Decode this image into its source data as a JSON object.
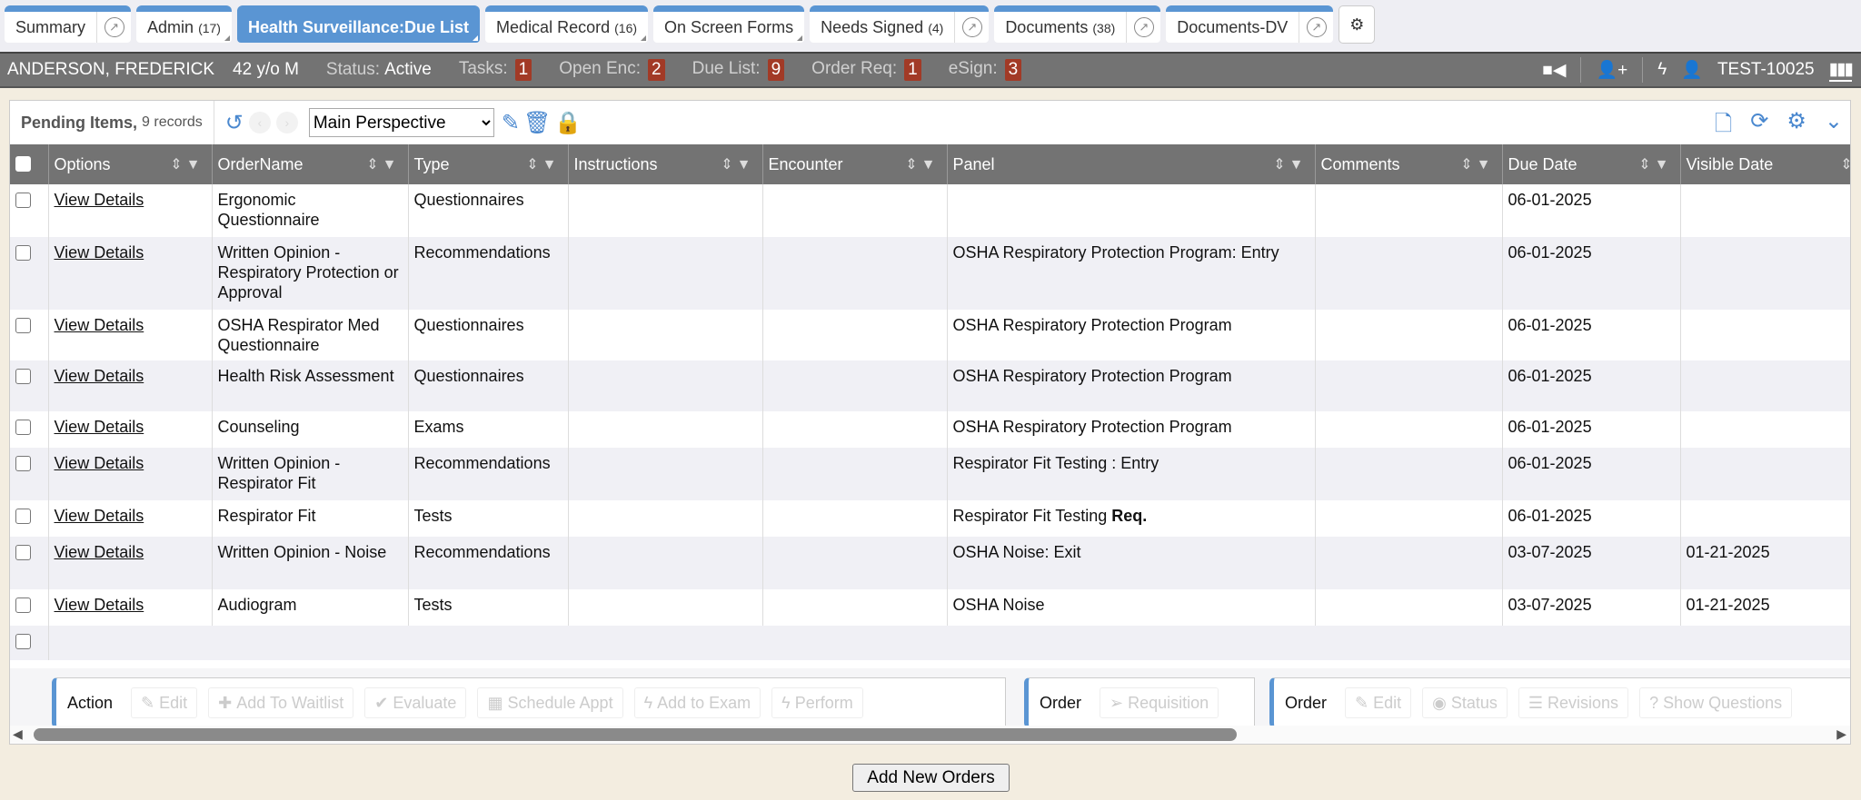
{
  "tabs": [
    {
      "label": "Summary",
      "count": "",
      "ext": true,
      "active": false
    },
    {
      "label": "Admin",
      "count": "(17)",
      "ext": false,
      "active": false
    },
    {
      "label": "Health Surveillance:Due List",
      "count": "",
      "ext": false,
      "active": true
    },
    {
      "label": "Medical Record",
      "count": "(16)",
      "ext": false,
      "active": false
    },
    {
      "label": "On Screen Forms",
      "count": "",
      "ext": false,
      "active": false
    },
    {
      "label": "Needs Signed",
      "count": "(4)",
      "ext": true,
      "active": false
    },
    {
      "label": "Documents",
      "count": "(38)",
      "ext": true,
      "active": false
    },
    {
      "label": "Documents-DV",
      "count": "",
      "ext": true,
      "active": false
    }
  ],
  "patient": {
    "name": "ANDERSON, FREDERICK",
    "age": "42 y/o M",
    "status_label": "Status:",
    "status": "Active",
    "counters": [
      {
        "label": "Tasks:",
        "value": "1"
      },
      {
        "label": "Open Enc:",
        "value": "2"
      },
      {
        "label": "Due List:",
        "value": "9"
      },
      {
        "label": "Order Req:",
        "value": "1"
      },
      {
        "label": "eSign:",
        "value": "3"
      }
    ],
    "user": "TEST-10025"
  },
  "toolbar": {
    "title": "Pending Items,",
    "records": "9 records",
    "perspective": "Main Perspective"
  },
  "columns": [
    "Options",
    "OrderName",
    "Type",
    "Instructions",
    "Encounter",
    "Panel",
    "Comments",
    "Due Date",
    "Visible Date"
  ],
  "rows": [
    {
      "option": "View Details",
      "order": "Ergonomic Questionnaire",
      "type": "Questionnaires",
      "panel": "",
      "req": "",
      "due": "06-01-2025",
      "visible": ""
    },
    {
      "option": "View Details",
      "order": "Written Opinion - Respiratory Protection or Approval",
      "type": "Recommendations",
      "panel": "OSHA Respiratory Protection Program: Entry",
      "req": "",
      "due": "06-01-2025",
      "visible": ""
    },
    {
      "option": "View Details",
      "order": "OSHA Respirator Med Questionnaire",
      "type": "Questionnaires",
      "panel": "OSHA Respiratory Protection Program",
      "req": "",
      "due": "06-01-2025",
      "visible": ""
    },
    {
      "option": "View Details",
      "order": "Health Risk Assessment",
      "type": "Questionnaires",
      "panel": "OSHA Respiratory Protection Program",
      "req": "",
      "due": "06-01-2025",
      "visible": ""
    },
    {
      "option": "View Details",
      "order": "Counseling",
      "type": "Exams",
      "panel": "OSHA Respiratory Protection Program",
      "req": "",
      "due": "06-01-2025",
      "visible": ""
    },
    {
      "option": "View Details",
      "order": "Written Opinion - Respirator Fit",
      "type": "Recommendations",
      "panel": "Respirator Fit Testing : Entry",
      "req": "",
      "due": "06-01-2025",
      "visible": ""
    },
    {
      "option": "View Details",
      "order": "Respirator Fit",
      "type": "Tests",
      "panel": "Respirator Fit Testing",
      "req": "Req.",
      "due": "06-01-2025",
      "visible": ""
    },
    {
      "option": "View Details",
      "order": "Written Opinion - Noise",
      "type": "Recommendations",
      "panel": "OSHA Noise: Exit",
      "req": "",
      "due": "03-07-2025",
      "visible": "01-21-2025"
    },
    {
      "option": "View Details",
      "order": "Audiogram",
      "type": "Tests",
      "panel": "OSHA Noise",
      "req": "",
      "due": "03-07-2025",
      "visible": "01-21-2025"
    }
  ],
  "action_groups": [
    {
      "label": "Action",
      "buttons": [
        {
          "icon": "pencil-icon",
          "glyph": "✎",
          "label": "Edit"
        },
        {
          "icon": "plus-icon",
          "glyph": "✚",
          "label": "Add To Waitlist"
        },
        {
          "icon": "check-icon",
          "glyph": "✔",
          "label": "Evaluate"
        },
        {
          "icon": "calendar-icon",
          "glyph": "▦",
          "label": "Schedule Appt"
        },
        {
          "icon": "bolt-icon",
          "glyph": "ϟ",
          "label": "Add to Exam"
        },
        {
          "icon": "bolt-icon",
          "glyph": "ϟ",
          "label": "Perform"
        }
      ]
    },
    {
      "label": "Order",
      "buttons": [
        {
          "icon": "paper-plane-icon",
          "glyph": "➢",
          "label": "Requisition"
        }
      ]
    },
    {
      "label": "Order",
      "buttons": [
        {
          "icon": "pencil-icon",
          "glyph": "✎",
          "label": "Edit"
        },
        {
          "icon": "eye-icon",
          "glyph": "◉",
          "label": "Status"
        },
        {
          "icon": "list-icon",
          "glyph": "☰",
          "label": "Revisions"
        },
        {
          "icon": "question-icon",
          "glyph": "?",
          "label": "Show Questions"
        }
      ]
    }
  ],
  "add_button": "Add New Orders",
  "colors": {
    "accent": "#5a95d3",
    "badge": "#a23a26",
    "bar": "#737373",
    "background": "#f3ede0"
  }
}
